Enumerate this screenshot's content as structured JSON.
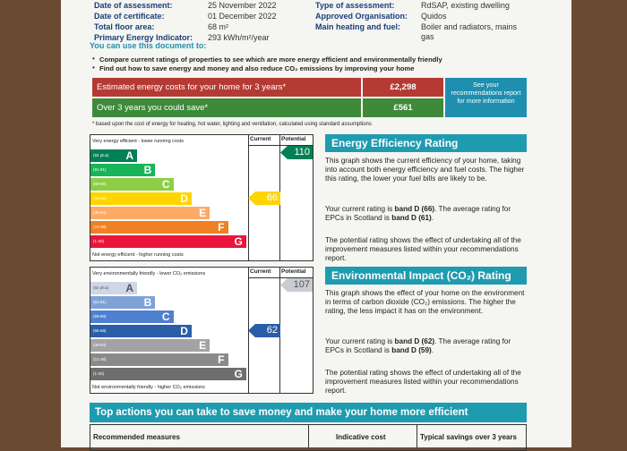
{
  "header": {
    "left": [
      {
        "label": "Date of assessment:",
        "value": "25 November 2022"
      },
      {
        "label": "Date of certificate:",
        "value": "01 December 2022"
      },
      {
        "label": "Total floor area:",
        "value": "68 m²"
      },
      {
        "label": "Primary Energy Indicator:",
        "value": "293 kWh/m²/year"
      }
    ],
    "right": [
      {
        "label": "Type of assessment:",
        "value": "RdSAP, existing dwelling"
      },
      {
        "label": "Approved Organisation:",
        "value": "Quidos"
      },
      {
        "label": "Main heating and fuel:",
        "value": "Boiler and radiators, mains gas"
      }
    ]
  },
  "uses": {
    "title": "You can use this document to:",
    "bullets": [
      "Compare current ratings of properties to see which are more energy efficient and environmentally friendly",
      "Find out how to save energy and money and also reduce CO₂ emissions by improving your home"
    ]
  },
  "costs": {
    "rows": [
      {
        "label": "Estimated energy costs for your home for 3 years*",
        "value": "£2,298"
      },
      {
        "label": "Over 3 years you could save*",
        "value": "£561"
      }
    ],
    "note": "See your recommendations report for more information",
    "footnote": "* based upon the cost of energy for heating, hot water, lighting and ventilation, calculated using standard assumptions"
  },
  "energy": {
    "top_label": "Very energy efficient - lower running costs",
    "bottom_label": "Not energy efficient - higher running costs",
    "current_heading": "Current",
    "potential_heading": "Potential",
    "bands": [
      {
        "range": "(92 plus)",
        "letter": "A"
      },
      {
        "range": "(81-91)",
        "letter": "B"
      },
      {
        "range": "(69-80)",
        "letter": "C"
      },
      {
        "range": "(55-68)",
        "letter": "D"
      },
      {
        "range": "(39-54)",
        "letter": "E"
      },
      {
        "range": "(21-38)",
        "letter": "F"
      },
      {
        "range": "(1-20)",
        "letter": "G"
      }
    ],
    "current": 66,
    "potential": 110,
    "heading": "Energy Efficiency Rating",
    "paragraphs": [
      [
        "This graph shows the current efficiency of your home, taking into account both energy efficiency and fuel costs. The higher this rating, the lower your fuel bills are likely to be."
      ],
      [
        "Your current rating is ",
        "band D (66)",
        ". The average rating for EPCs in Scotland is ",
        "band D (61)",
        "."
      ],
      [
        "The potential rating shows the effect of undertaking all of the improvement measures listed within your recommendations report."
      ]
    ]
  },
  "environment": {
    "top_label": "Very environmentally friendly - lower CO₂ emissions",
    "bottom_label": "Not environmentally friendly - higher CO₂ emissions",
    "current_heading": "Current",
    "potential_heading": "Potential",
    "bands": [
      {
        "range": "(92 plus)",
        "letter": "A"
      },
      {
        "range": "(81-91)",
        "letter": "B"
      },
      {
        "range": "(69-80)",
        "letter": "C"
      },
      {
        "range": "(55-68)",
        "letter": "D"
      },
      {
        "range": "(39-54)",
        "letter": "E"
      },
      {
        "range": "(21-38)",
        "letter": "F"
      },
      {
        "range": "(1-20)",
        "letter": "G"
      }
    ],
    "current": 62,
    "potential": 107,
    "heading": "Environmental Impact (CO₂) Rating",
    "paragraphs": [
      [
        "This graph shows the effect of your home on the environment in terms of carbon dioxide (CO₂) emissions. The higher the rating, the less impact it has on the environment."
      ],
      [
        "Your current rating is ",
        "band D (62)",
        ". The average rating for EPCs in Scotland is ",
        "band D (59)",
        "."
      ],
      [
        "The potential rating shows the effect of undertaking all of the improvement measures listed within your recommendations report."
      ]
    ]
  },
  "actions": {
    "title": "Top actions you can take to save money and make your home more efficient",
    "columns": [
      "Recommended measures",
      "Indicative cost",
      "Typical savings over 3 years"
    ]
  }
}
